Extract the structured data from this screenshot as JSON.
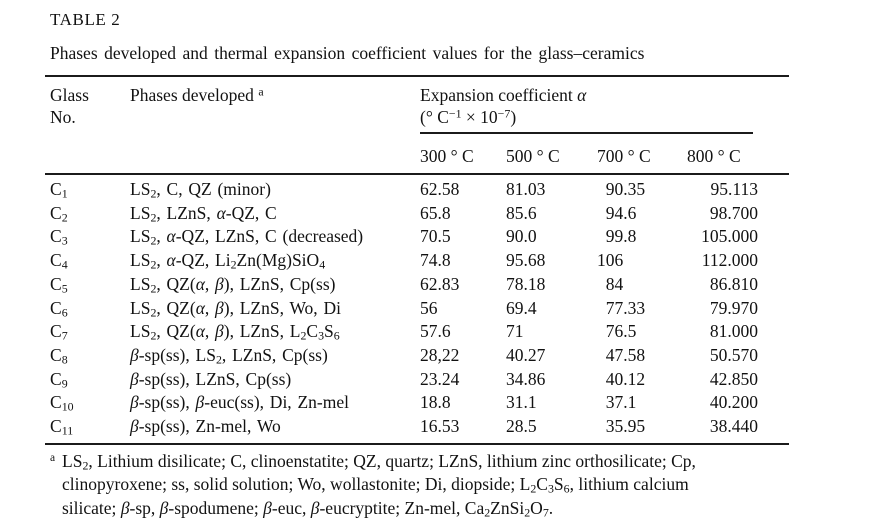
{
  "document": {
    "label": "TABLE 2",
    "caption": "Phases developed and thermal expansion coefficient values for the glass–ceramics"
  },
  "table": {
    "headers": {
      "glass_no_line1": "Glass",
      "glass_no_line2": "No.",
      "phases": "Phases developed ^{a}",
      "expansion_line1": "Expansion coefficient α",
      "expansion_line2": "(° C^{−1} × 10^{−7})",
      "temps": [
        "300 ° C",
        "500 ° C",
        "700 ° C",
        "800 ° C"
      ]
    },
    "rows": [
      {
        "glass_no": "C_{1}",
        "phases": "LS_{2}, C, QZ (minor)",
        "values": [
          "62.58",
          "81.03",
          "90.35",
          "95.113"
        ]
      },
      {
        "glass_no": "C_{2}",
        "phases": "LS_{2}, LZnS, α-QZ, C",
        "values": [
          "65.8",
          "85.6",
          "94.6",
          "98.700"
        ]
      },
      {
        "glass_no": "C_{3}",
        "phases": "LS_{2}, α-QZ, LZnS, C (decreased)",
        "values": [
          "70.5",
          "90.0",
          "99.8",
          "105.000"
        ]
      },
      {
        "glass_no": "C_{4}",
        "phases": "LS_{2}, α-QZ, Li_{2}Zn(Mg)SiO_{4}",
        "values": [
          "74.8",
          "95.68",
          "106",
          "112.000"
        ]
      },
      {
        "glass_no": "C_{5}",
        "phases": "LS_{2}, QZ(α, β), LZnS, Cp(ss)",
        "values": [
          "62.83",
          "78.18",
          "84",
          "86.810"
        ]
      },
      {
        "glass_no": "C_{6}",
        "phases": "LS_{2}, QZ(α, β), LZnS, Wo, Di",
        "values": [
          "56",
          "69.4",
          "77.33",
          "79.970"
        ]
      },
      {
        "glass_no": "C_{7}",
        "phases": "LS_{2}, QZ(α, β), LZnS, L_{2}C_{3}S_{6}",
        "values": [
          "57.6",
          "71",
          "76.5",
          "81.000"
        ]
      },
      {
        "glass_no": "C_{8}",
        "phases": "β-sp(ss), LS_{2}, LZnS, Cp(ss)",
        "values": [
          "28,22",
          "40.27",
          "47.58",
          "50.570"
        ]
      },
      {
        "glass_no": "C_{9}",
        "phases": "β-sp(ss), LZnS, Cp(ss)",
        "values": [
          "23.24",
          "34.86",
          "40.12",
          "42.850"
        ]
      },
      {
        "glass_no": "C_{10}",
        "phases": "β-sp(ss), β-euc(ss), Di, Zn-mel",
        "values": [
          "18.8",
          "31.1",
          "37.1",
          "40.200"
        ]
      },
      {
        "glass_no": "C_{11}",
        "phases": "β-sp(ss), Zn-mel, Wo",
        "values": [
          "16.53",
          "28.5",
          "35.95",
          "38.440"
        ]
      }
    ]
  },
  "footnote": {
    "marker": "a",
    "lines": [
      "LS_{2}, Lithium disilicate; C, clinoenstatite; QZ, quartz; LZnS, lithium zinc orthosilicate; Cp,",
      "clinopyroxene; ss, solid solution; Wo, wollastonite; Di, diopside; L_{2}C_{3}S_{6}, lithium calcium",
      "silicate; β-sp, β-spodumene; β-euc, β-eucryptite; Zn-mel, Ca_{2}ZnSi_{2}O_{7}."
    ]
  }
}
